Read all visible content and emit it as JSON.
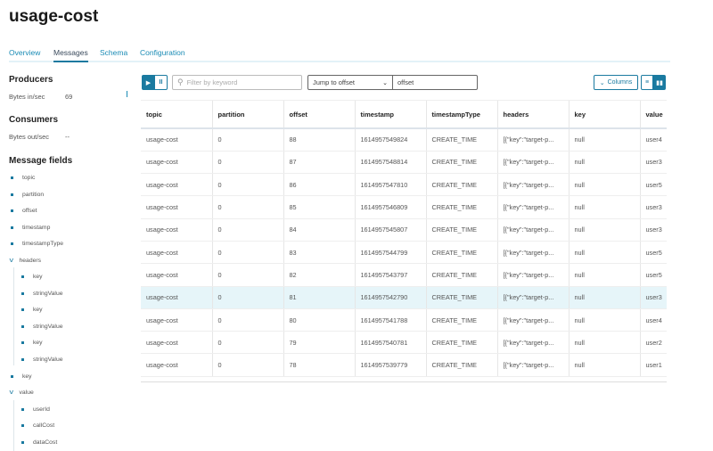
{
  "title": "usage-cost",
  "tabs": [
    {
      "label": "Overview"
    },
    {
      "label": "Messages"
    },
    {
      "label": "Schema"
    },
    {
      "label": "Configuration"
    }
  ],
  "sidebar": {
    "producers": {
      "heading": "Producers",
      "label": "Bytes in/sec",
      "value": "69"
    },
    "consumers": {
      "heading": "Consumers",
      "label": "Bytes out/sec",
      "value": "--"
    },
    "fields_heading": "Message fields",
    "fields": {
      "topic": "topic",
      "partition": "partition",
      "offset": "offset",
      "timestamp": "timestamp",
      "timestampType": "timestampType",
      "headers": "headers",
      "headers_children": [
        "key",
        "stringValue",
        "key",
        "stringValue",
        "key",
        "stringValue"
      ],
      "key": "key",
      "value": "value",
      "value_children": [
        "userId",
        "callCost",
        "dataCost"
      ]
    }
  },
  "toolbar": {
    "filter_placeholder": "Filter by keyword",
    "jump_select": "Jump to offset",
    "offset_value": "offset",
    "columns_label": "Columns",
    "accent": "#1a7aa0"
  },
  "table": {
    "headers": [
      "topic",
      "partition",
      "offset",
      "timestamp",
      "timestampType",
      "headers",
      "key",
      "value"
    ],
    "rows": [
      [
        "usage-cost",
        "0",
        "88",
        "1614957549824",
        "CREATE_TIME",
        "[{\"key\":\"target-p...",
        "null",
        "user4"
      ],
      [
        "usage-cost",
        "0",
        "87",
        "1614957548814",
        "CREATE_TIME",
        "[{\"key\":\"target-p...",
        "null",
        "user3"
      ],
      [
        "usage-cost",
        "0",
        "86",
        "1614957547810",
        "CREATE_TIME",
        "[{\"key\":\"target-p...",
        "null",
        "user5"
      ],
      [
        "usage-cost",
        "0",
        "85",
        "1614957546809",
        "CREATE_TIME",
        "[{\"key\":\"target-p...",
        "null",
        "user3"
      ],
      [
        "usage-cost",
        "0",
        "84",
        "1614957545807",
        "CREATE_TIME",
        "[{\"key\":\"target-p...",
        "null",
        "user3"
      ],
      [
        "usage-cost",
        "0",
        "83",
        "1614957544799",
        "CREATE_TIME",
        "[{\"key\":\"target-p...",
        "null",
        "user5"
      ],
      [
        "usage-cost",
        "0",
        "82",
        "1614957543797",
        "CREATE_TIME",
        "[{\"key\":\"target-p...",
        "null",
        "user5"
      ],
      [
        "usage-cost",
        "0",
        "81",
        "1614957542790",
        "CREATE_TIME",
        "[{\"key\":\"target-p...",
        "null",
        "user3"
      ],
      [
        "usage-cost",
        "0",
        "80",
        "1614957541788",
        "CREATE_TIME",
        "[{\"key\":\"target-p...",
        "null",
        "user4"
      ],
      [
        "usage-cost",
        "0",
        "79",
        "1614957540781",
        "CREATE_TIME",
        "[{\"key\":\"target-p...",
        "null",
        "user2"
      ],
      [
        "usage-cost",
        "0",
        "78",
        "1614957539779",
        "CREATE_TIME",
        "[{\"key\":\"target-p...",
        "null",
        "user1"
      ]
    ],
    "selected_row": 7
  }
}
